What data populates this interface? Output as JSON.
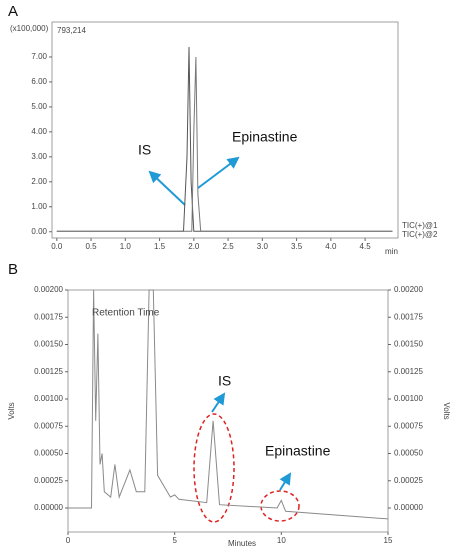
{
  "chart_data": [
    {
      "type": "line",
      "panel_label": "A",
      "y_scale_label": "(x100,000)",
      "max_label": "793,214",
      "xlabel": "min",
      "annotations": [
        "IS",
        "Epinastine"
      ],
      "series": [
        {
          "name": "TIC(+)@1",
          "color": "#555555",
          "x": [
            0,
            1.85,
            1.9,
            1.93,
            1.96,
            2.0,
            4.9
          ],
          "values": [
            0.02,
            0.02,
            3,
            7.4,
            2,
            0.02,
            0.02
          ]
        },
        {
          "name": "TIC(+)@2",
          "color": "#777777",
          "x": [
            0,
            1.97,
            2.0,
            2.03,
            2.06,
            2.1,
            4.9
          ],
          "values": [
            0.02,
            0.02,
            4,
            7.0,
            1.5,
            0.02,
            0.02
          ]
        }
      ],
      "xlim": [
        -0.07,
        4.98
      ],
      "ylim": [
        -0.25,
        8.4
      ],
      "xticks": [
        {
          "value": 0,
          "label": "0.0"
        },
        0.5,
        {
          "value": 1,
          "label": "1.0"
        },
        1.5,
        {
          "value": 2,
          "label": "2.0"
        },
        2.5,
        {
          "value": 3,
          "label": "3.0"
        },
        3.5,
        {
          "value": 4,
          "label": "4.0"
        },
        4.5
      ],
      "yticks": [
        {
          "value": 0,
          "label": "0.00"
        },
        {
          "value": 1,
          "label": "1.00"
        },
        {
          "value": 2,
          "label": "2.00"
        },
        {
          "value": 3,
          "label": "3.00"
        },
        {
          "value": 4,
          "label": "4.00"
        },
        {
          "value": 5,
          "label": "5.00"
        },
        {
          "value": 6,
          "label": "6.00"
        },
        {
          "value": 7,
          "label": "7.00"
        }
      ]
    },
    {
      "type": "line",
      "panel_label": "B",
      "xlabel": "Minutes",
      "ylabel": "Volts",
      "y2label": "Volts",
      "note": "Retention Time",
      "annotations": [
        "IS",
        "Epinastine"
      ],
      "color": "#8a8a8a",
      "x": [
        0,
        1.1,
        1.2,
        1.3,
        1.4,
        1.5,
        1.6,
        1.7,
        2.0,
        2.2,
        2.4,
        2.9,
        3.2,
        3.6,
        3.8,
        4.0,
        4.2,
        4.8,
        5.0,
        5.2,
        6.5,
        6.8,
        7.1,
        9.8,
        10.0,
        10.2,
        15
      ],
      "values": [
        0,
        0,
        0.002,
        0.0008,
        0.0016,
        0.0004,
        0.0005,
        0.00015,
        0.0001,
        0.0004,
        0.0001,
        0.00035,
        0.00015,
        0.00015,
        0.002,
        0.002,
        0.0003,
        0.0001,
        0.00012,
        8e-05,
        5e-05,
        0.0008,
        3e-05,
        0,
        7e-05,
        -3e-05,
        -0.0001
      ],
      "xlim": [
        0,
        15
      ],
      "ylim": [
        -0.00022,
        0.002
      ],
      "y2lim": [
        -0.00022,
        0.002
      ],
      "xticks": [
        0,
        5,
        10,
        15
      ],
      "yticks": [
        {
          "value": 0,
          "label": "0.00000"
        },
        {
          "value": 0.00025,
          "label": "0.00025"
        },
        {
          "value": 0.0005,
          "label": "0.00050"
        },
        {
          "value": 0.00075,
          "label": "0.00075"
        },
        {
          "value": 0.001,
          "label": "0.00100"
        },
        {
          "value": 0.00125,
          "label": "0.00125"
        },
        {
          "value": 0.0015,
          "label": "0.00150"
        },
        {
          "value": 0.00175,
          "label": "0.00175"
        },
        {
          "value": 0.002,
          "label": "0.00200"
        }
      ],
      "y2ticks": [
        {
          "value": 0,
          "label": "0.00000"
        },
        {
          "value": 0.00025,
          "label": "0.00025"
        },
        {
          "value": 0.0005,
          "label": "0.00050"
        },
        {
          "value": 0.00075,
          "label": "0.00075"
        },
        {
          "value": 0.001,
          "label": "0.00100"
        },
        {
          "value": 0.00125,
          "label": "0.00125"
        },
        {
          "value": 0.0015,
          "label": "0.00150"
        },
        {
          "value": 0.00175,
          "label": "0.00175"
        },
        {
          "value": 0.002,
          "label": "0.00200"
        }
      ]
    }
  ]
}
